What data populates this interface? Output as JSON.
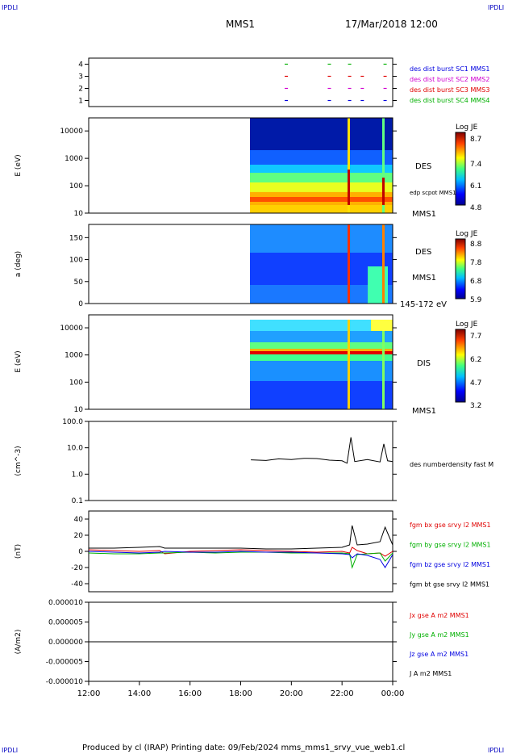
{
  "corner_tag": "IPDLI",
  "header": {
    "spacecraft": "MMS1",
    "datetime": "17/Mar/2018 12:00"
  },
  "footer": {
    "text": "Produced by cl (IRAP)   Printing date: 09/Feb/2024   mms_mms1_srvy_vue_web1.cl"
  },
  "colors": {
    "red": "#e00000",
    "green": "#00b000",
    "blue": "#0000e0",
    "magenta": "#d000d0",
    "black": "#000000"
  },
  "chart_data": [
    {
      "type": "line",
      "panel": "burst_availability",
      "ylim": [
        0.5,
        4.5
      ],
      "y_ticks": [
        "4",
        "3",
        "2",
        "1"
      ],
      "series": [
        {
          "name": "des dist burst SC1 MMS1",
          "level": 1,
          "color": "#0000e0",
          "x_hours": [
            19.8,
            21.5,
            22.3,
            22.8,
            23.7
          ]
        },
        {
          "name": "des dist burst SC2 MMS2",
          "level": 2,
          "color": "#d000d0",
          "x_hours": [
            19.8,
            21.5,
            22.3,
            22.8,
            23.7
          ]
        },
        {
          "name": "des dist burst SC3 MMS3",
          "level": 3,
          "color": "#e00000",
          "x_hours": [
            19.8,
            21.5,
            22.3,
            22.8,
            23.7
          ]
        },
        {
          "name": "des dist burst SC4 MMS4",
          "level": 4,
          "color": "#00b000",
          "x_hours": [
            19.8,
            21.5,
            22.3,
            23.7
          ]
        }
      ]
    },
    {
      "type": "heatmap",
      "panel": "des_energy",
      "ylabel": "E (eV)",
      "yscale": "log",
      "ylim": [
        10,
        30000
      ],
      "y_ticks": [
        "10000",
        "1000",
        "100",
        "10"
      ],
      "right_labels": [
        "DES",
        "edp scpot MMS1",
        "MMS1"
      ],
      "colorbar": {
        "title": "Log JE",
        "ticks": [
          "8.7",
          "7.4",
          "6.1",
          "4.8"
        ]
      },
      "data_start_hour": 18.4
    },
    {
      "type": "heatmap",
      "panel": "des_pitch_angle",
      "ylabel": "a (deg)",
      "ylim": [
        0,
        180
      ],
      "y_ticks": [
        "150",
        "100",
        "50",
        "0"
      ],
      "right_labels": [
        "DES",
        "MMS1",
        "145-172 eV"
      ],
      "colorbar": {
        "title": "Log JE",
        "ticks": [
          "8.8",
          "7.8",
          "6.8",
          "5.9"
        ]
      },
      "data_start_hour": 18.4
    },
    {
      "type": "heatmap",
      "panel": "dis_energy",
      "ylabel": "E (eV)",
      "yscale": "log",
      "ylim": [
        10,
        30000
      ],
      "y_ticks": [
        "10000",
        "1000",
        "100",
        "10"
      ],
      "right_labels": [
        "DIS",
        "MMS1"
      ],
      "colorbar": {
        "title": "Log JE",
        "ticks": [
          "7.7",
          "6.2",
          "4.7",
          "3.2"
        ]
      },
      "data_start_hour": 18.4
    },
    {
      "type": "line",
      "panel": "density",
      "ylabel": "(cm^-3)",
      "yscale": "log",
      "ylim": [
        0.1,
        100
      ],
      "y_ticks": [
        "100.0",
        "10.0",
        "1.0",
        "0.1"
      ],
      "series": [
        {
          "name": "des numberdensity fast M",
          "color": "#000000",
          "x": [
            18.4,
            19.0,
            19.5,
            20.0,
            20.5,
            21.0,
            21.5,
            22.0,
            22.2,
            22.35,
            22.5,
            23.0,
            23.5,
            23.65,
            23.8,
            24.0
          ],
          "y": [
            3.5,
            3.3,
            3.8,
            3.6,
            4.0,
            3.9,
            3.4,
            3.2,
            2.6,
            25,
            3.0,
            3.6,
            2.9,
            14,
            3.2,
            3.0
          ]
        }
      ]
    },
    {
      "type": "line",
      "panel": "magnetic_field",
      "ylabel": "(nT)",
      "ylim": [
        -50,
        50
      ],
      "y_ticks": [
        "40",
        "20",
        "0",
        "-20",
        "-40"
      ],
      "x": [
        12,
        13,
        14,
        14.8,
        15,
        16,
        17,
        18,
        19,
        20,
        21,
        22,
        22.3,
        22.4,
        22.6,
        23,
        23.5,
        23.7,
        24
      ],
      "series": [
        {
          "name": "fgm bx gse srvy l2 MMS1",
          "color": "#e00000",
          "y": [
            2,
            1,
            0,
            1,
            -3,
            0,
            1,
            2,
            1,
            0,
            -1,
            0,
            -2,
            5,
            1,
            -3,
            -2,
            -6,
            0
          ]
        },
        {
          "name": "fgm by gse srvy l2 MMS1",
          "color": "#00b000",
          "y": [
            -2,
            -3,
            -3,
            -2,
            -2,
            -1,
            -2,
            -1,
            -1,
            -2,
            -2,
            -2,
            -3,
            -20,
            -4,
            -3,
            -2,
            -12,
            -2
          ]
        },
        {
          "name": "fgm bz gse srvy l2 MMS1",
          "color": "#0000e0",
          "y": [
            0,
            -1,
            -2,
            -1,
            0,
            -1,
            -1,
            0,
            -1,
            -1,
            -2,
            -3,
            -4,
            -8,
            -3,
            -5,
            -10,
            -20,
            -4
          ]
        },
        {
          "name": "fgm bt gse srvy l2 MMS1",
          "color": "#000000",
          "y": [
            4,
            4,
            5,
            6,
            4,
            4,
            4,
            4,
            3,
            3,
            4,
            5,
            8,
            32,
            8,
            9,
            12,
            30,
            8
          ]
        }
      ]
    },
    {
      "type": "line",
      "panel": "current_density",
      "ylabel": "(A/m2)",
      "ylim": [
        -1e-05,
        1e-05
      ],
      "y_ticks": [
        "0.000010",
        "0.000005",
        "0.000000",
        "-0.000005",
        "-0.000010"
      ],
      "x_ticks": [
        "12:00",
        "14:00",
        "16:00",
        "18:00",
        "20:00",
        "22:00",
        "00:00"
      ],
      "series": [
        {
          "name": "Jx gse A m2 MMS1",
          "color": "#e00000"
        },
        {
          "name": "Jy gse A m2 MMS1",
          "color": "#00b000"
        },
        {
          "name": "Jz gse A m2 MMS1",
          "color": "#0000e0"
        },
        {
          "name": "J A m2 MMS1",
          "color": "#000000"
        }
      ]
    }
  ]
}
